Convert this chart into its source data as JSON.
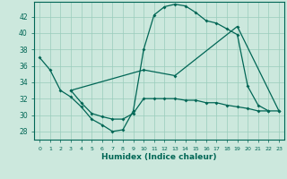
{
  "xlabel": "Humidex (Indice chaleur)",
  "bg_color": "#cce8dd",
  "line_color": "#006655",
  "grid_color": "#99ccbb",
  "xlim": [
    -0.5,
    23.5
  ],
  "ylim": [
    27.0,
    43.8
  ],
  "yticks": [
    28,
    30,
    32,
    34,
    36,
    38,
    40,
    42
  ],
  "xticks": [
    0,
    1,
    2,
    3,
    4,
    5,
    6,
    7,
    8,
    9,
    10,
    11,
    12,
    13,
    14,
    15,
    16,
    17,
    18,
    19,
    20,
    21,
    22,
    23
  ],
  "series1_x": [
    0,
    1,
    2,
    3,
    4,
    5,
    6,
    7,
    8,
    9,
    10,
    11,
    12,
    13,
    14,
    15,
    16,
    17,
    18,
    19,
    20,
    21,
    22
  ],
  "series1_y": [
    37.0,
    35.5,
    33.0,
    32.2,
    31.0,
    29.5,
    28.8,
    28.0,
    28.2,
    30.5,
    38.0,
    42.2,
    43.2,
    43.5,
    43.3,
    42.5,
    41.5,
    41.2,
    40.5,
    39.8,
    33.5,
    31.2,
    30.5
  ],
  "series2_x": [
    3,
    10,
    13,
    19,
    23
  ],
  "series2_y": [
    33.0,
    35.5,
    34.8,
    40.8,
    30.5
  ],
  "series3_x": [
    3,
    4,
    5,
    6,
    7,
    8,
    9,
    10,
    11,
    12,
    13,
    14,
    15,
    16,
    17,
    18,
    19,
    20,
    21,
    22,
    23
  ],
  "series3_y": [
    33.0,
    31.5,
    30.2,
    29.8,
    29.5,
    29.5,
    30.2,
    32.0,
    32.0,
    32.0,
    32.0,
    31.8,
    31.8,
    31.5,
    31.5,
    31.2,
    31.0,
    30.8,
    30.5,
    30.5,
    30.5
  ]
}
